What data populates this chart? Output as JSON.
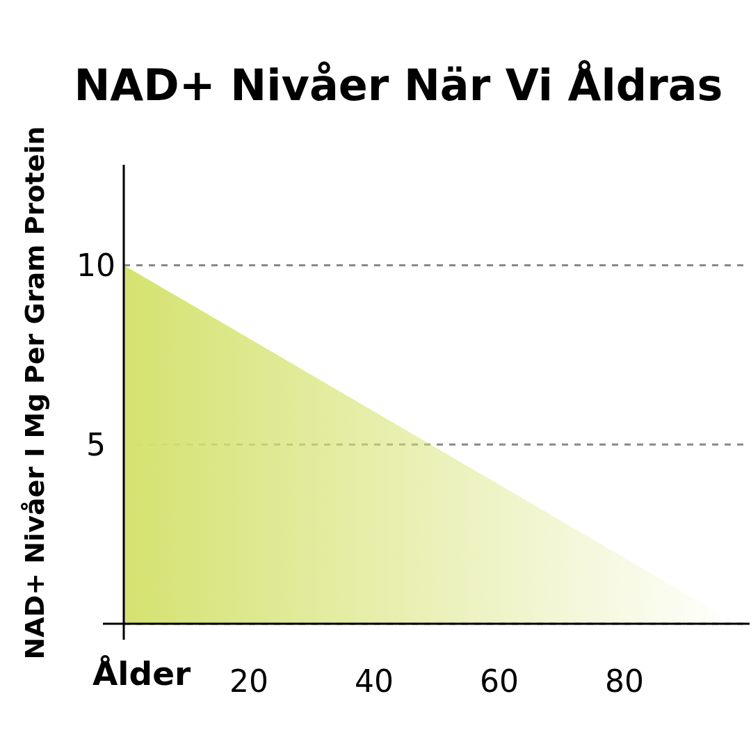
{
  "chart_data": {
    "type": "area",
    "title": "NAD+ Nivåer När Vi Åldras",
    "xlabel": "Ålder",
    "ylabel": "NAD+ Nivåer I Mg Per Gram Protein",
    "x": [
      0,
      98
    ],
    "values": [
      10,
      0
    ],
    "color": "#d5e270",
    "xlim": [
      0,
      100
    ],
    "xticks": [
      {
        "value": 0,
        "label": null
      },
      20,
      40,
      60,
      80
    ],
    "ylim": [
      0,
      12.8
    ],
    "yticks": [
      {
        "value": 0,
        "label": null
      },
      5,
      10
    ],
    "grid": "y"
  }
}
